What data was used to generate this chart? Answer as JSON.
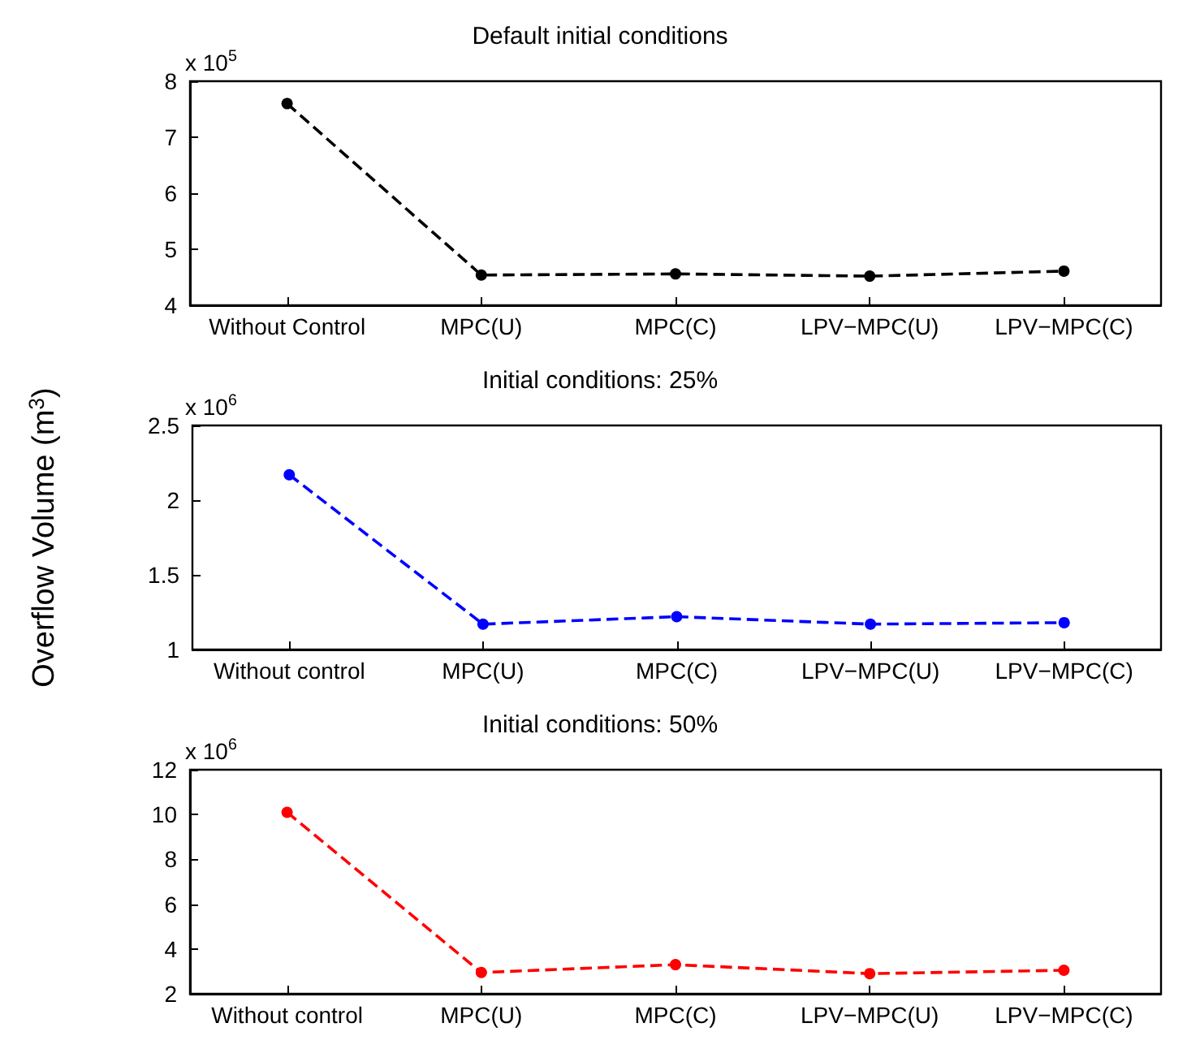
{
  "chart_data": [
    {
      "type": "line",
      "title": "Default initial conditions",
      "categories": [
        "Without Control",
        "MPC(U)",
        "MPC(C)",
        "LPV−MPC(U)",
        "LPV−MPC(C)"
      ],
      "series": [
        {
          "color": "#000000",
          "values": [
            7.6,
            4.54,
            4.56,
            4.52,
            4.61
          ]
        }
      ],
      "ylim": [
        4,
        8
      ],
      "yticks": [
        4,
        5,
        6,
        7,
        8
      ],
      "annotations": [
        "x 10$^{5}$"
      ],
      "grid": false,
      "marker": "circle",
      "line_style": "dashed"
    },
    {
      "type": "line",
      "title": "Initial conditions: 25%",
      "ylabel": "Overflow Volume (m$^{3}$)",
      "categories": [
        "Without control",
        "MPC(U)",
        "MPC(C)",
        "LPV−MPC(U)",
        "LPV−MPC(C)"
      ],
      "series": [
        {
          "color": "#0000ff",
          "values": [
            2.17,
            1.17,
            1.22,
            1.17,
            1.18
          ]
        }
      ],
      "ylim": [
        1,
        2.5
      ],
      "yticks": [
        1,
        1.5,
        2,
        2.5
      ],
      "annotations": [
        "x 10$^{6}$"
      ],
      "grid": false,
      "marker": "circle",
      "line_style": "dashed"
    },
    {
      "type": "line",
      "title": "Initial conditions: 50%",
      "categories": [
        "Without control",
        "MPC(U)",
        "MPC(C)",
        "LPV−MPC(U)",
        "LPV−MPC(C)"
      ],
      "series": [
        {
          "color": "#ff0000",
          "values": [
            10.1,
            2.95,
            3.3,
            2.9,
            3.05
          ]
        }
      ],
      "ylim": [
        2,
        12
      ],
      "yticks": [
        2,
        4,
        6,
        8,
        10,
        12
      ],
      "annotations": [
        "x 10$^{6}$"
      ],
      "grid": false,
      "marker": "circle",
      "line_style": "dashed"
    }
  ]
}
